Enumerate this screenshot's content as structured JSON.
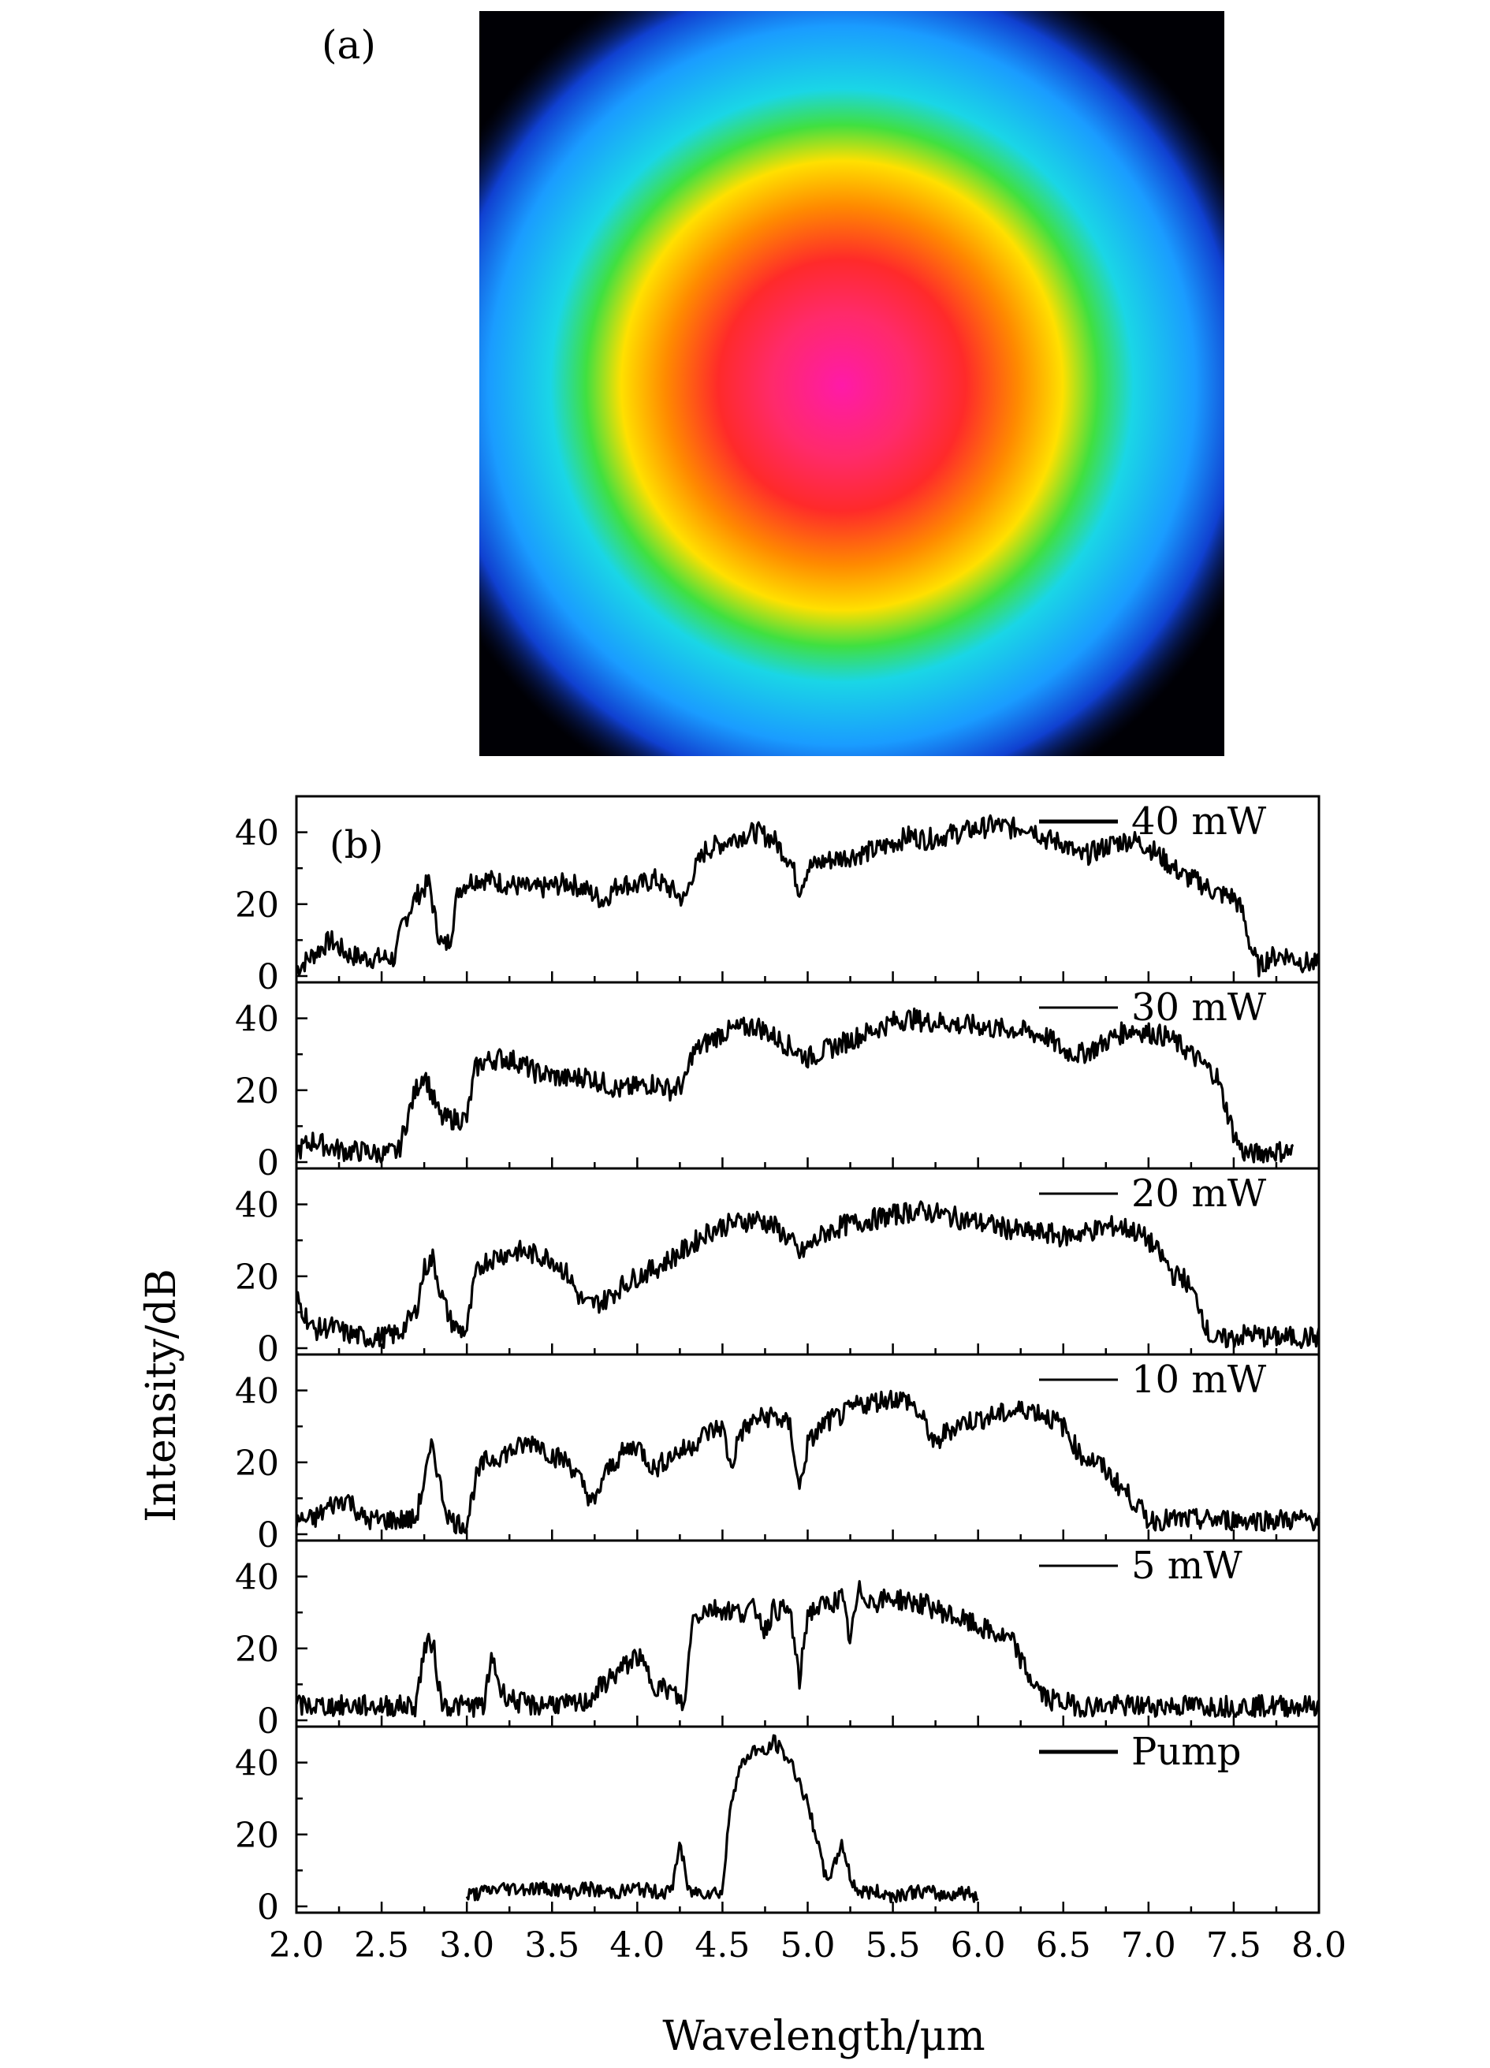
{
  "panel_a": {
    "label": "(a)",
    "description_colors": [
      "#ff1aa8",
      "#ff2a3a",
      "#ffd000",
      "#22d84a",
      "#1ad6e6",
      "#1a6cff",
      "#0a1aa0",
      "#000005"
    ]
  },
  "chart_data": {
    "type": "line",
    "panel_label": "(b)",
    "xlabel": "Wavelength/μm",
    "ylabel": "Intensity/dB",
    "xlim": [
      2.0,
      8.0
    ],
    "ylim": [
      0,
      50
    ],
    "xticks": [
      "2.0",
      "2.5",
      "3.0",
      "3.5",
      "4.0",
      "4.5",
      "5.0",
      "5.5",
      "6.0",
      "6.5",
      "7.0",
      "7.5",
      "8.0"
    ],
    "yticks": [
      "0",
      "20",
      "40"
    ],
    "grid": false,
    "legend_placement": "top-right of each sub-panel",
    "line_color": "#000000",
    "series": [
      {
        "name": "40 mW",
        "x": [
          2.0,
          2.1,
          2.2,
          2.3,
          2.4,
          2.5,
          2.58,
          2.62,
          2.7,
          2.78,
          2.82,
          2.86,
          2.9,
          2.95,
          3.0,
          3.05,
          3.1,
          3.2,
          3.3,
          3.4,
          3.5,
          3.6,
          3.7,
          3.8,
          3.9,
          4.0,
          4.1,
          4.2,
          4.28,
          4.32,
          4.4,
          4.5,
          4.6,
          4.7,
          4.75,
          4.8,
          4.9,
          4.95,
          5.0,
          5.1,
          5.2,
          5.3,
          5.4,
          5.5,
          5.6,
          5.7,
          5.8,
          5.9,
          6.0,
          6.1,
          6.2,
          6.3,
          6.4,
          6.5,
          6.6,
          6.7,
          6.8,
          6.9,
          7.0,
          7.1,
          7.2,
          7.3,
          7.4,
          7.5,
          7.55,
          7.6,
          7.65,
          7.7,
          7.8,
          7.9,
          8.0
        ],
        "values": [
          2,
          6,
          10,
          6,
          5,
          5,
          5,
          14,
          22,
          26,
          14,
          8,
          10,
          24,
          26,
          27,
          27,
          26,
          25,
          24,
          25,
          26,
          24,
          21,
          26,
          25,
          27,
          24,
          21,
          28,
          35,
          37,
          39,
          40,
          39,
          38,
          32,
          24,
          30,
          32,
          33,
          34,
          35,
          37,
          39,
          38,
          39,
          40,
          41,
          42,
          41,
          42,
          38,
          37,
          33,
          35,
          37,
          38,
          36,
          32,
          28,
          26,
          23,
          22,
          18,
          8,
          2,
          5,
          6,
          4,
          3
        ],
        "jitter": 3
      },
      {
        "name": "30 mW",
        "x": [
          2.0,
          2.1,
          2.2,
          2.3,
          2.4,
          2.5,
          2.6,
          2.65,
          2.7,
          2.75,
          2.8,
          2.85,
          2.9,
          2.95,
          3.0,
          3.05,
          3.1,
          3.2,
          3.3,
          3.4,
          3.5,
          3.6,
          3.7,
          3.8,
          3.9,
          4.0,
          4.1,
          4.2,
          4.28,
          4.32,
          4.4,
          4.5,
          4.6,
          4.7,
          4.8,
          4.9,
          5.0,
          5.1,
          5.2,
          5.3,
          5.4,
          5.5,
          5.6,
          5.7,
          5.8,
          5.9,
          6.0,
          6.1,
          6.2,
          6.3,
          6.4,
          6.5,
          6.6,
          6.7,
          6.8,
          6.9,
          7.0,
          7.1,
          7.2,
          7.3,
          7.4,
          7.45,
          7.5,
          7.55,
          7.6,
          7.7,
          7.8,
          7.85
        ],
        "values": [
          3,
          6,
          4,
          3,
          3,
          2,
          3,
          12,
          20,
          25,
          18,
          12,
          12,
          12,
          12,
          26,
          28,
          29,
          28,
          25,
          24,
          23,
          24,
          22,
          20,
          21,
          22,
          20,
          22,
          30,
          33,
          36,
          37,
          38,
          35,
          32,
          29,
          31,
          33,
          35,
          37,
          39,
          40,
          39,
          39,
          38,
          38,
          37,
          37,
          36,
          35,
          31,
          30,
          32,
          35,
          37,
          36,
          35,
          32,
          28,
          24,
          16,
          8,
          3,
          2,
          3,
          3,
          3
        ],
        "jitter": 3
      },
      {
        "name": "20 mW",
        "x": [
          2.0,
          2.1,
          2.2,
          2.3,
          2.4,
          2.5,
          2.6,
          2.7,
          2.75,
          2.8,
          2.85,
          2.9,
          2.95,
          3.0,
          3.05,
          3.1,
          3.2,
          3.3,
          3.4,
          3.5,
          3.6,
          3.65,
          3.7,
          3.8,
          3.9,
          4.0,
          4.1,
          4.2,
          4.3,
          4.4,
          4.5,
          4.6,
          4.7,
          4.8,
          4.9,
          4.95,
          5.0,
          5.1,
          5.2,
          5.3,
          5.4,
          5.5,
          5.6,
          5.7,
          5.8,
          5.9,
          6.0,
          6.1,
          6.2,
          6.3,
          6.4,
          6.5,
          6.6,
          6.7,
          6.8,
          6.9,
          7.0,
          7.1,
          7.15,
          7.2,
          7.3,
          7.35,
          7.4,
          7.5,
          7.6,
          7.7,
          7.8,
          7.9,
          8.0
        ],
        "values": [
          14,
          5,
          6,
          4,
          3,
          3,
          4,
          10,
          22,
          25,
          15,
          8,
          5,
          5,
          20,
          24,
          26,
          27,
          26,
          25,
          20,
          15,
          12,
          13,
          17,
          20,
          22,
          25,
          28,
          32,
          34,
          35,
          36,
          34,
          30,
          26,
          28,
          32,
          34,
          35,
          36,
          37,
          38,
          38,
          37,
          36,
          35,
          34,
          33,
          32,
          32,
          31,
          32,
          33,
          34,
          33,
          30,
          24,
          20,
          20,
          12,
          4,
          2,
          3,
          4,
          3,
          3,
          3,
          3
        ],
        "jitter": 3
      },
      {
        "name": "10 mW",
        "x": [
          2.0,
          2.1,
          2.2,
          2.3,
          2.4,
          2.5,
          2.6,
          2.7,
          2.75,
          2.8,
          2.85,
          2.9,
          2.95,
          3.0,
          3.05,
          3.1,
          3.2,
          3.3,
          3.4,
          3.5,
          3.6,
          3.7,
          3.75,
          3.8,
          3.9,
          4.0,
          4.1,
          4.2,
          4.3,
          4.4,
          4.5,
          4.55,
          4.6,
          4.7,
          4.8,
          4.9,
          4.95,
          5.0,
          5.1,
          5.2,
          5.3,
          5.4,
          5.5,
          5.6,
          5.7,
          5.75,
          5.8,
          5.9,
          6.0,
          6.1,
          6.2,
          6.3,
          6.4,
          6.5,
          6.6,
          6.7,
          6.8,
          6.9,
          7.0,
          7.1,
          7.2,
          7.3,
          7.4,
          7.5,
          7.6,
          7.7,
          7.8,
          7.9,
          8.0
        ],
        "values": [
          4,
          4,
          8,
          10,
          4,
          4,
          4,
          4,
          15,
          25,
          12,
          4,
          3,
          3,
          15,
          20,
          22,
          24,
          26,
          22,
          20,
          12,
          8,
          16,
          22,
          25,
          18,
          22,
          24,
          28,
          30,
          18,
          28,
          32,
          33,
          30,
          12,
          25,
          31,
          33,
          36,
          37,
          38,
          37,
          30,
          24,
          28,
          31,
          32,
          33,
          34,
          35,
          33,
          30,
          22,
          20,
          15,
          10,
          4,
          4,
          4,
          4,
          4,
          4,
          4,
          4,
          4,
          4,
          4
        ],
        "jitter": 3
      },
      {
        "name": "5 mW",
        "x": [
          2.0,
          2.1,
          2.2,
          2.3,
          2.4,
          2.5,
          2.6,
          2.7,
          2.75,
          2.8,
          2.85,
          2.9,
          3.0,
          3.1,
          3.15,
          3.2,
          3.3,
          3.4,
          3.5,
          3.6,
          3.7,
          3.8,
          3.9,
          4.0,
          4.1,
          4.2,
          4.28,
          4.32,
          4.4,
          4.5,
          4.6,
          4.7,
          4.75,
          4.8,
          4.9,
          4.95,
          5.0,
          5.1,
          5.2,
          5.25,
          5.3,
          5.35,
          5.4,
          5.5,
          5.6,
          5.7,
          5.8,
          5.9,
          6.0,
          6.1,
          6.2,
          6.3,
          6.4,
          6.5,
          6.6,
          6.7,
          6.8,
          6.9,
          7.0,
          7.1,
          7.2,
          7.3,
          7.4,
          7.5,
          7.6,
          7.7,
          7.8,
          7.9,
          8.0
        ],
        "values": [
          4,
          4,
          4,
          4,
          4,
          4,
          4,
          4,
          20,
          22,
          5,
          4,
          4,
          4,
          18,
          8,
          5,
          4,
          5,
          4,
          5,
          10,
          14,
          18,
          10,
          8,
          4,
          28,
          31,
          31,
          30,
          31,
          25,
          31,
          30,
          10,
          30,
          32,
          34,
          22,
          36,
          34,
          33,
          34,
          33,
          32,
          30,
          28,
          26,
          24,
          22,
          12,
          6,
          5,
          4,
          4,
          4,
          4,
          4,
          4,
          4,
          4,
          4,
          4,
          4,
          4,
          4,
          4,
          4
        ],
        "jitter": 3
      },
      {
        "name": "Pump",
        "x": [
          3.0,
          3.1,
          3.2,
          3.3,
          3.4,
          3.5,
          3.6,
          3.7,
          3.8,
          3.9,
          4.0,
          4.1,
          4.2,
          4.25,
          4.3,
          4.4,
          4.5,
          4.55,
          4.6,
          4.65,
          4.7,
          4.75,
          4.8,
          4.85,
          4.9,
          4.95,
          5.0,
          5.05,
          5.1,
          5.15,
          5.2,
          5.25,
          5.3,
          5.4,
          5.5,
          5.6,
          5.7,
          5.8,
          5.9,
          6.0
        ],
        "values": [
          3,
          4,
          5,
          5,
          5,
          5,
          4,
          5,
          4,
          4,
          5,
          4,
          4,
          18,
          4,
          4,
          4,
          30,
          38,
          42,
          44,
          42,
          46,
          43,
          40,
          35,
          28,
          20,
          8,
          10,
          18,
          8,
          4,
          4,
          3,
          4,
          4,
          3,
          4,
          3
        ],
        "jitter": 2
      }
    ]
  }
}
